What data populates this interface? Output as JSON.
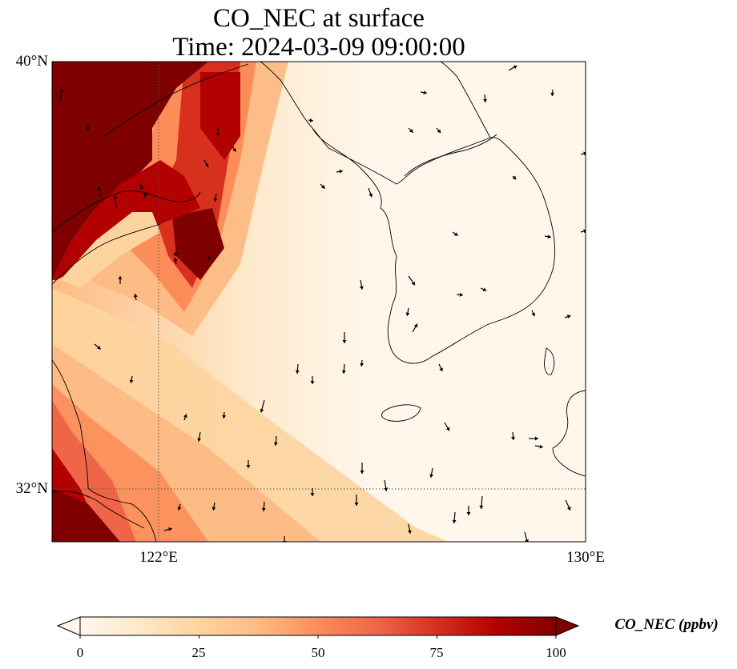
{
  "title": {
    "line1": "CO_NEC at surface",
    "line2": "Time: 2024-03-09 09:00:00"
  },
  "map": {
    "lat_labels": [
      "40°N",
      "32°N"
    ],
    "lon_labels": [
      "122°E",
      "130°E"
    ],
    "extent": {
      "lon_min": 120,
      "lon_max": 130,
      "lat_min": 31,
      "lat_max": 40
    },
    "gridlines": {
      "lons": [
        122,
        130
      ],
      "lats": [
        32,
        40
      ],
      "style": "dotted"
    },
    "field": {
      "variable": "CO_NEC",
      "units": "ppbv",
      "range": [
        0,
        100
      ],
      "colormap": "OrRd",
      "high_values_region": "west and northwest (China coast)",
      "low_values_region": "east (Korea, Yellow Sea east)"
    },
    "wind_vectors": {
      "shown": true,
      "prevailing_direction": "north to south"
    }
  },
  "colorbar": {
    "label": "CO_NEC (ppbv)",
    "ticks": [
      "0",
      "25",
      "50",
      "75",
      "100"
    ],
    "colors": [
      "#fff7ec",
      "#fee8c8",
      "#fdd49e",
      "#fdbb84",
      "#fc8d59",
      "#ef6548",
      "#d7301f",
      "#b30000",
      "#7f0000"
    ],
    "extend": "both"
  }
}
